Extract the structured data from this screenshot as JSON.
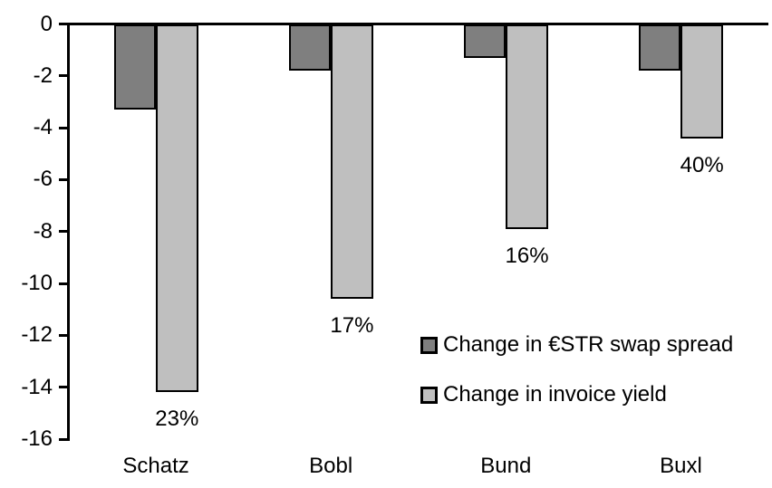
{
  "chart_data": {
    "type": "bar",
    "categories": [
      "Schatz",
      "Bobl",
      "Bund",
      "Buxl"
    ],
    "series": [
      {
        "name": "Change in €STR swap spread",
        "color": "#7F7F7F",
        "values": [
          -3.3,
          -1.8,
          -1.3,
          -1.8
        ]
      },
      {
        "name": "Change in invoice yield",
        "color": "#BFBFBF",
        "values": [
          -14.2,
          -10.6,
          -7.9,
          -4.4
        ],
        "data_labels": [
          "23%",
          "17%",
          "16%",
          "40%"
        ]
      }
    ],
    "title": "",
    "xlabel": "",
    "ylabel": "",
    "ylim": [
      -16,
      0
    ],
    "ytick_labels": [
      "0",
      "-2",
      "-4",
      "-6",
      "-8",
      "-10",
      "-12",
      "-14",
      "-16"
    ],
    "grid": false,
    "legend_position": "inside-right",
    "bar_border_color": "#000000",
    "axis_color": "#000000"
  }
}
